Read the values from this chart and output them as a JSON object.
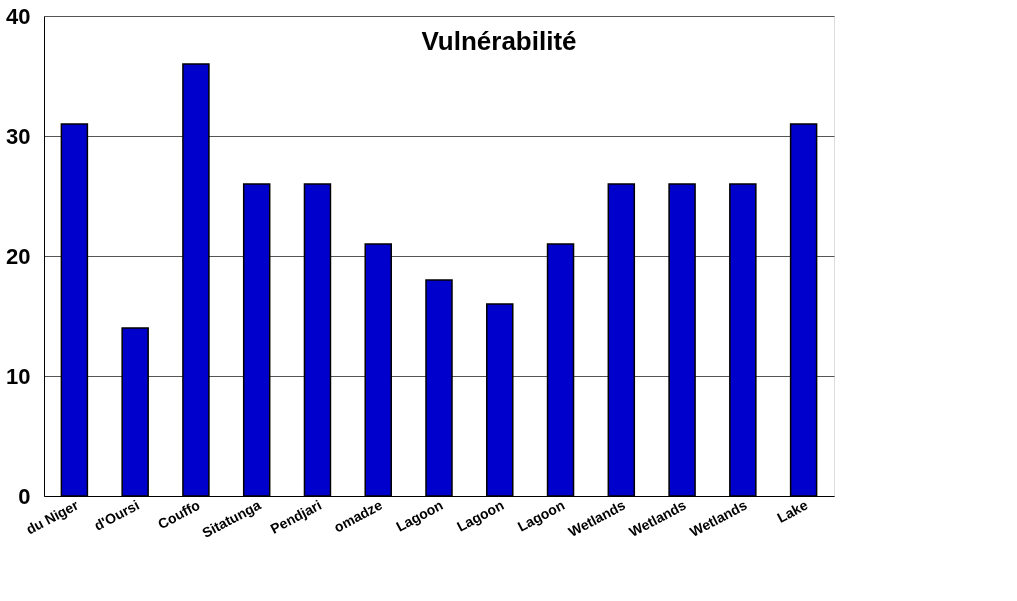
{
  "chart_data": {
    "type": "bar",
    "title": "Vulnérabilité",
    "categories": [
      "du Niger",
      "d'Oursi",
      "Couffo",
      "Sitatunga",
      "Pendjari",
      "omadze",
      "Lagoon",
      "Lagoon",
      "Lagoon",
      "Wetlands",
      "Wetlands",
      "Wetlands",
      "Lake"
    ],
    "values": [
      31,
      14,
      36,
      26,
      26,
      21,
      18,
      16,
      21,
      26,
      26,
      26,
      31
    ],
    "color": "#0000cc",
    "ylim": [
      0,
      40
    ],
    "yticks": [
      0,
      10,
      20,
      30,
      40
    ],
    "grid": "y"
  }
}
